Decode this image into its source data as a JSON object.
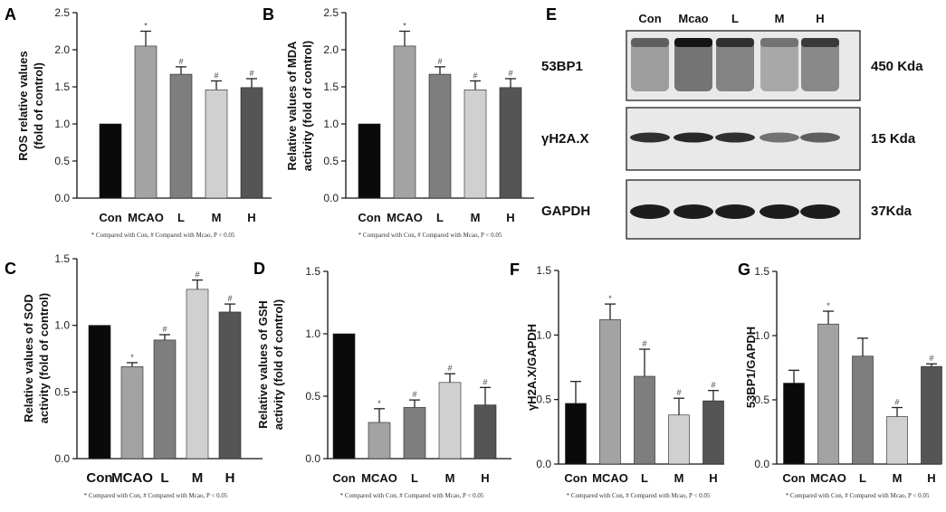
{
  "chart_data": [
    {
      "panel": "A",
      "type": "bar",
      "categories": [
        "Con",
        "MCAO",
        "L",
        "M",
        "H"
      ],
      "values": [
        1.0,
        2.05,
        1.67,
        1.46,
        1.49
      ],
      "errors": [
        0,
        0.2,
        0.1,
        0.12,
        0.12
      ],
      "sig": [
        "",
        "*",
        "#",
        "#",
        "#"
      ],
      "colors": [
        "#0a0a0a",
        "#a3a3a3",
        "#7e7e7e",
        "#d0d0d0",
        "#555555"
      ],
      "ylabel": [
        "ROS relative values",
        "(fold of control)"
      ],
      "ylim": [
        0,
        2.5
      ],
      "yticks": [
        "0.0",
        "0.5",
        "1.0",
        "1.5",
        "2.0",
        "2.5"
      ],
      "footnote": "* Compared with Con, # Compared with Mcao, P < 0.05"
    },
    {
      "panel": "B",
      "type": "bar",
      "categories": [
        "Con",
        "MCAO",
        "L",
        "M",
        "H"
      ],
      "values": [
        1.0,
        2.05,
        1.67,
        1.46,
        1.49
      ],
      "errors": [
        0,
        0.2,
        0.1,
        0.12,
        0.12
      ],
      "sig": [
        "",
        "*",
        "#",
        "#",
        "#"
      ],
      "colors": [
        "#0a0a0a",
        "#a3a3a3",
        "#7e7e7e",
        "#d0d0d0",
        "#555555"
      ],
      "ylabel": [
        "Relative values of MDA",
        "activity (fold of control)"
      ],
      "ylim": [
        0,
        2.5
      ],
      "yticks": [
        "0.0",
        "0.5",
        "1.0",
        "1.5",
        "2.0",
        "2.5"
      ],
      "footnote": "* Compared with Con, # Compared with Mcao, P < 0.05"
    },
    {
      "panel": "C",
      "type": "bar",
      "categories": [
        "Con",
        "MCAO",
        "L",
        "M",
        "H"
      ],
      "values": [
        1.0,
        0.69,
        0.89,
        1.27,
        1.1
      ],
      "errors": [
        0,
        0.03,
        0.04,
        0.07,
        0.06
      ],
      "sig": [
        "",
        "*",
        "#",
        "#",
        "#"
      ],
      "colors": [
        "#0a0a0a",
        "#a3a3a3",
        "#7e7e7e",
        "#d0d0d0",
        "#555555"
      ],
      "ylabel": [
        "Relative values of SOD",
        "activity (fold of control)"
      ],
      "ylim": [
        0,
        1.5
      ],
      "yticks": [
        "0.0",
        "0.5",
        "1.0",
        "1.5"
      ],
      "footnote": "* Compared with Con, # Compared with Mcao, P < 0.05"
    },
    {
      "panel": "D",
      "type": "bar",
      "categories": [
        "Con",
        "MCAO",
        "L",
        "M",
        "H"
      ],
      "values": [
        1.0,
        0.29,
        0.41,
        0.61,
        0.43
      ],
      "errors": [
        0,
        0.11,
        0.06,
        0.07,
        0.14
      ],
      "sig": [
        "",
        "*",
        "#",
        "#",
        "#"
      ],
      "colors": [
        "#0a0a0a",
        "#a3a3a3",
        "#7e7e7e",
        "#d0d0d0",
        "#555555"
      ],
      "ylabel": [
        "Relative values of GSH",
        "activity (fold of control)"
      ],
      "ylim": [
        0,
        1.5
      ],
      "yticks": [
        "0.0",
        "0.5",
        "1.0",
        "1.5"
      ],
      "footnote": "* Compared with Con, # Compared with Mcao, P < 0.05"
    },
    {
      "panel": "F",
      "type": "bar",
      "categories": [
        "Con",
        "MCAO",
        "L",
        "M",
        "H"
      ],
      "values": [
        0.47,
        1.12,
        0.68,
        0.38,
        0.49
      ],
      "errors": [
        0.17,
        0.12,
        0.21,
        0.13,
        0.08
      ],
      "sig": [
        "",
        "*",
        "#",
        "#",
        "#"
      ],
      "colors": [
        "#0a0a0a",
        "#a3a3a3",
        "#7e7e7e",
        "#d0d0d0",
        "#555555"
      ],
      "ylabel": [
        "γH2A.X/GAPDH"
      ],
      "ylim": [
        0,
        1.5
      ],
      "yticks": [
        "0.0",
        "0.5",
        "1.0",
        "1.5"
      ],
      "footnote": "* Compared with Con, # Compared with Mcao, P < 0.05"
    },
    {
      "panel": "G",
      "type": "bar",
      "categories": [
        "Con",
        "MCAO",
        "L",
        "M",
        "H"
      ],
      "values": [
        0.63,
        1.09,
        0.84,
        0.37,
        0.76
      ],
      "errors": [
        0.1,
        0.1,
        0.14,
        0.07,
        0.02
      ],
      "sig": [
        "",
        "*",
        "",
        "#",
        "#"
      ],
      "colors": [
        "#0a0a0a",
        "#a3a3a3",
        "#7e7e7e",
        "#d0d0d0",
        "#555555"
      ],
      "ylabel": [
        "53BP1/GAPDH"
      ],
      "ylim": [
        0,
        1.5
      ],
      "yticks": [
        "0.0",
        "0.5",
        "1.0",
        "1.5"
      ],
      "footnote": "* Compared with Con, # Compared with Mcao, P < 0.05"
    }
  ],
  "western_blot": {
    "panel": "E",
    "lanes": [
      "Con",
      "Mcao",
      "L",
      "M",
      "H"
    ],
    "rows": [
      {
        "protein": "53BP1",
        "size": "450 Kda",
        "intensity": [
          0.55,
          0.95,
          0.8,
          0.45,
          0.75
        ]
      },
      {
        "protein": "γH2A.X",
        "size": "15 Kda",
        "intensity": [
          0.8,
          0.85,
          0.8,
          0.45,
          0.55
        ]
      },
      {
        "protein": "GAPDH",
        "size": "37Kda",
        "intensity": [
          0.9,
          0.9,
          0.9,
          0.9,
          0.9
        ]
      }
    ]
  }
}
